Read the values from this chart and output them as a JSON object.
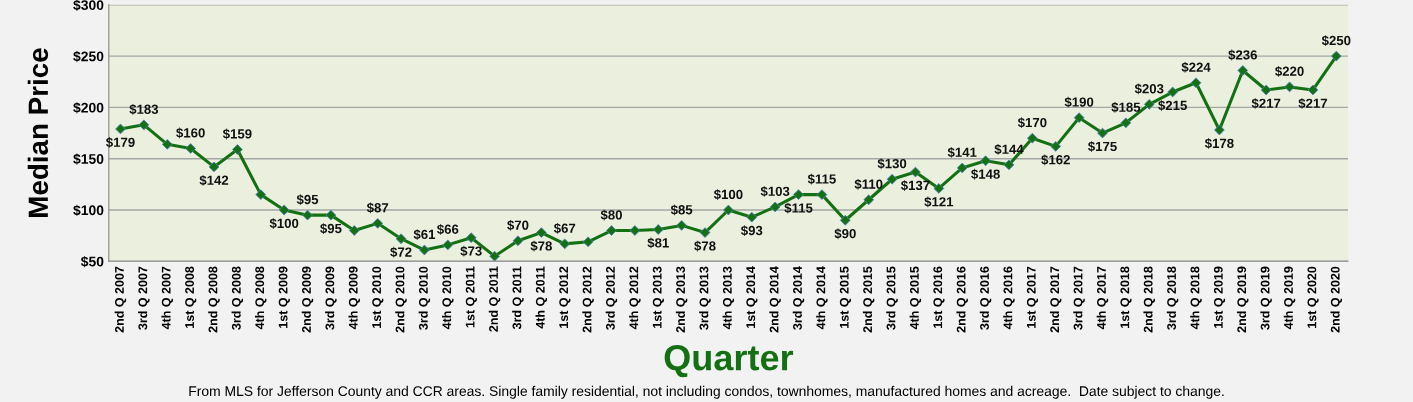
{
  "chart_data": {
    "type": "line",
    "xlabel": "Quarter",
    "ylabel": "Median Price",
    "annotations": [
      "From MLS for Jefferson County and CCR areas. Single family residential, not including condos, townhomes, manufactured homes and acreage.  Date subject to change."
    ],
    "categories": [
      "2nd Q 2007",
      "3rd Q 2007",
      "4th Q 2007",
      "1st Q 2008",
      "2nd Q 2008",
      "3rd Q 2008",
      "4th Q 2008",
      "1st Q 2009",
      "2nd Q 2009",
      "3rd Q 2009",
      "4th Q 2009",
      "1st Q 2010",
      "2nd Q 2010",
      "3rd Q 2010",
      "4th Q 2010",
      "1st Q 2011",
      "2nd Q 2011",
      "3rd Q 2011",
      "4th Q 2011",
      "1st Q 2012",
      "2nd Q 2012",
      "3rd Q 2012",
      "4th Q 2012",
      "1st Q 2013",
      "2nd Q 2013",
      "3rd Q 2013",
      "4th Q 2013",
      "1st Q 2014",
      "2nd Q 2014",
      "3rd Q 2014",
      "4th Q 2014",
      "1st Q 2015",
      "2nd Q 2015",
      "3rd Q 2015",
      "4th Q 2015",
      "1st Q 2016",
      "2nd Q 2016",
      "3rd Q 2016",
      "4th Q 2016",
      "1st Q 2017",
      "2nd Q 2017",
      "3rd Q 2017",
      "4th Q 2017",
      "1st Q 2018",
      "2nd Q 2018",
      "3rd Q 2018",
      "4th Q 2018",
      "1st Q 2019",
      "2nd Q 2019",
      "3rd Q 2019",
      "4th Q 2019",
      "1st Q 2020",
      "2nd Q 2020"
    ],
    "series": [
      {
        "color": "#137013",
        "values": [
          179,
          183,
          164,
          160,
          142,
          159,
          115,
          100,
          95,
          95,
          80,
          87,
          72,
          61,
          66,
          73,
          55,
          70,
          78,
          67,
          69,
          80,
          80,
          81,
          85,
          78,
          100,
          93,
          103,
          115,
          115,
          90,
          110,
          130,
          137,
          121,
          141,
          148,
          144,
          170,
          162,
          190,
          175,
          185,
          203,
          215,
          224,
          178,
          236,
          217,
          220,
          217,
          250
        ],
        "value_labels": [
          "$179",
          "$183",
          null,
          "$160",
          "$142",
          "$159",
          null,
          "$100",
          "$95",
          "$95",
          null,
          "$87",
          "$72",
          "$61",
          "$66",
          "$73",
          null,
          "$70",
          "$78",
          "$67",
          null,
          "$80",
          null,
          "$81",
          "$85",
          "$78",
          "$100",
          "$93",
          "$103",
          "$115",
          "$115",
          "$90",
          "$110",
          "$130",
          "$137",
          "$121",
          "$141",
          "$148",
          "$144",
          "$170",
          "$162",
          "$190",
          "$175",
          "$185",
          "$203",
          "$215",
          "$224",
          "$178",
          "$236",
          "$217",
          "$220",
          "$217",
          "$250"
        ]
      }
    ],
    "ylim": [
      50,
      300
    ],
    "yticks": [
      {
        "value": 50,
        "label": "$50"
      },
      {
        "value": 100,
        "label": "$100"
      },
      {
        "value": 150,
        "label": "$150"
      },
      {
        "value": 200,
        "label": "$200"
      },
      {
        "value": 250,
        "label": "$250"
      },
      {
        "value": 300,
        "label": "$300"
      }
    ],
    "grid": "y",
    "marker": "diamond",
    "line_style": "solid"
  }
}
